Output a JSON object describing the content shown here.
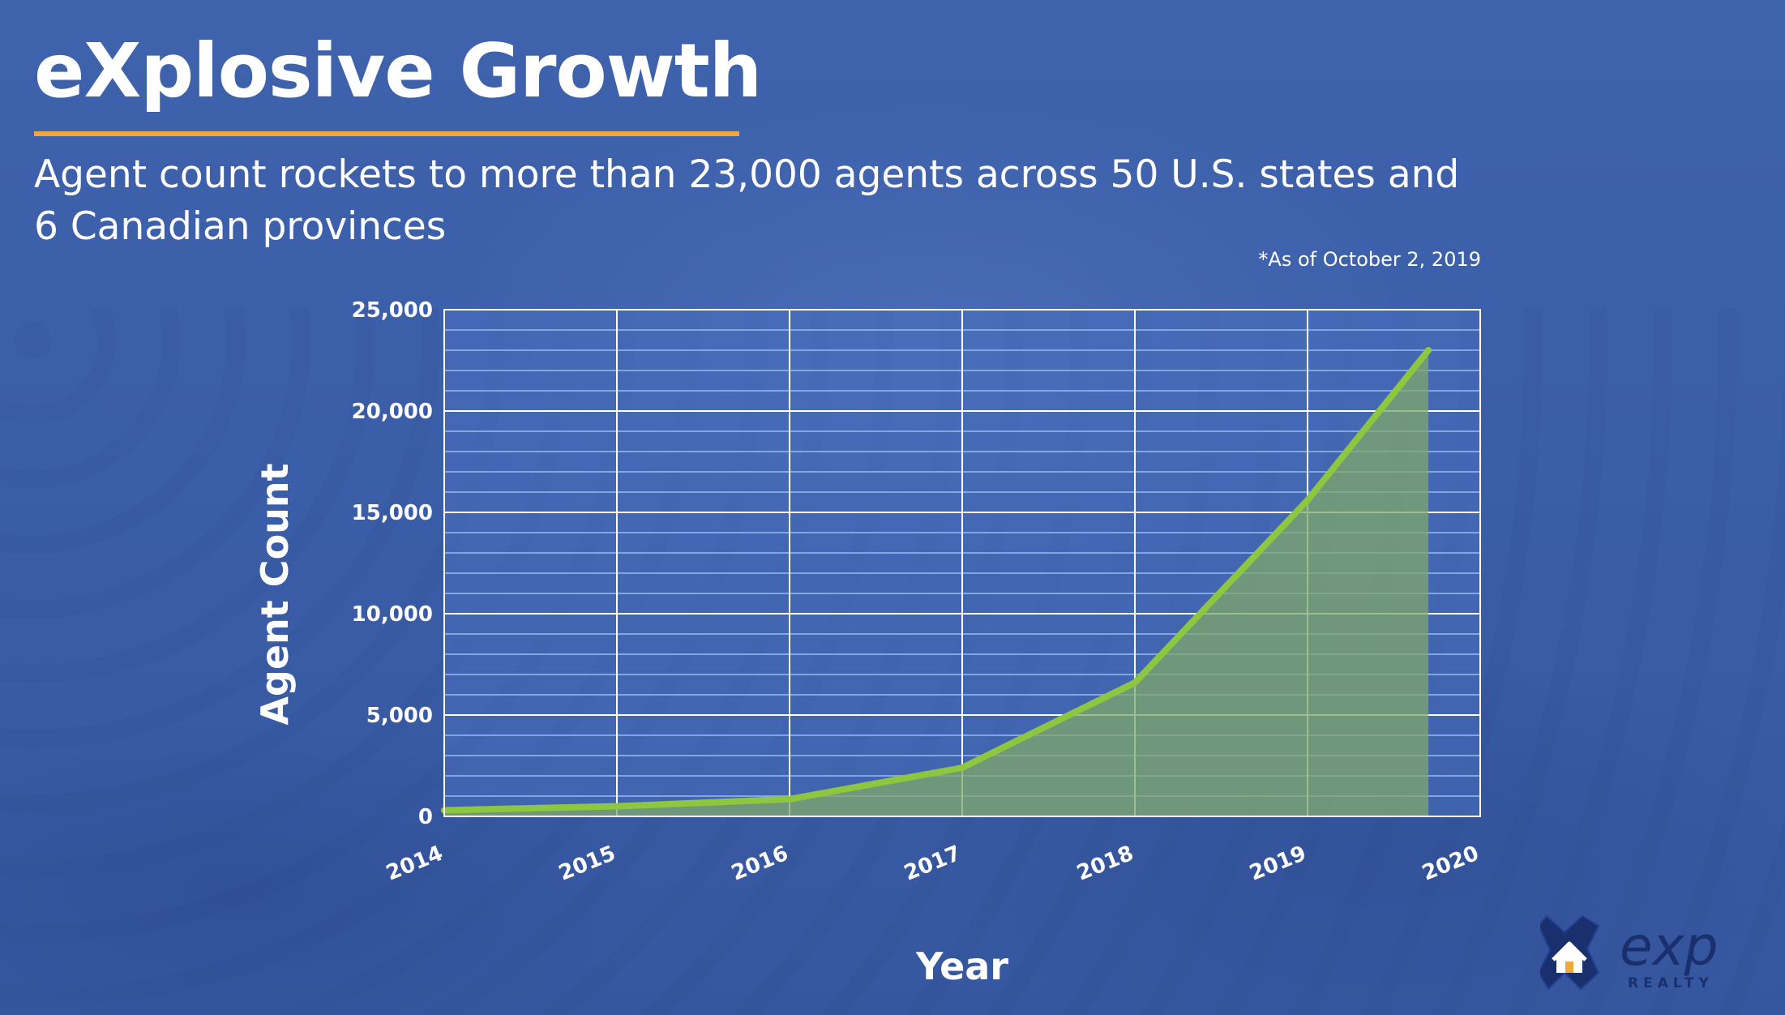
{
  "slide": {
    "title": "eXplosive Growth",
    "subtitle": "Agent count rockets to more than 23,000 agents across 50 U.S. states and 6 Canadian provinces",
    "footnote": "*As of October 2, 2019"
  },
  "colors": {
    "background": "#3d5fa8",
    "title_rule": "#f0a83a",
    "grid_line": "#ffffff",
    "minor_grid_line": "#8fb0ec",
    "series_line": "#8dc63f",
    "area_fill": "#7fa86a"
  },
  "logo": {
    "icon": "house-x-logo-icon",
    "wordmark": "exp",
    "tagline": "REALTY"
  },
  "chart_data": {
    "type": "area",
    "xlabel": "Year",
    "ylabel": "Agent Count",
    "xlim": [
      2014,
      2020
    ],
    "ylim": [
      0,
      25000
    ],
    "x_ticks": [
      "2014",
      "2015",
      "2016",
      "2017",
      "2018",
      "2019",
      "2020"
    ],
    "y_ticks": [
      "0",
      "5,000",
      "10,000",
      "15,000",
      "20,000",
      "25,000"
    ],
    "y_tick_values": [
      0,
      5000,
      10000,
      15000,
      20000,
      25000
    ],
    "grid": true,
    "minor_grid_step": 1000,
    "series": [
      {
        "x": [
          2014,
          2015,
          2016,
          2017,
          2018,
          2019,
          2019.7
        ],
        "y": [
          300,
          500,
          850,
          2400,
          6600,
          15600,
          23000
        ]
      }
    ]
  }
}
